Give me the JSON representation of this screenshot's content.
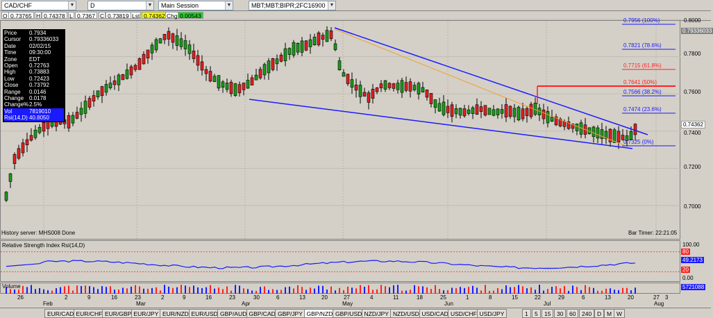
{
  "toolbar": {
    "symbol": "CAD/CHF",
    "interval": "D",
    "session": "Main Session",
    "datasource": "MBT;MBT;BIPR;2FC16900"
  },
  "quote": {
    "open_label": "O",
    "open": "0.73765",
    "high_label": "H",
    "high": "0.74378",
    "low_label": "L",
    "low": "0.7367",
    "close_label": "C",
    "close": "0.73819",
    "last_label": "Lst",
    "last": "0.74362",
    "chg_label": "Chg",
    "chg": "0.00543"
  },
  "info_panel": [
    {
      "k": "Price",
      "v": "0.7934"
    },
    {
      "k": "Cursor",
      "v": "0.79336033"
    },
    {
      "k": "Date",
      "v": "02/02/15"
    },
    {
      "k": "Time",
      "v": "09:30:00"
    },
    {
      "k": "Zone",
      "v": "EDT"
    },
    {
      "k": "Open",
      "v": "0.72763"
    },
    {
      "k": "High",
      "v": "0.73883"
    },
    {
      "k": "Low",
      "v": "0.72423"
    },
    {
      "k": "Close",
      "v": "0.73792"
    },
    {
      "k": "Range",
      "v": "0.0146"
    },
    {
      "k": "Change",
      "v": "0.0178"
    },
    {
      "k": "Change%",
      "v": "2.5%"
    },
    {
      "k": "Vol",
      "v": "7819010"
    },
    {
      "k": "Rsi(14,D)",
      "v": "40.8050"
    }
  ],
  "price_axis": {
    "ticks": [
      "0.8000",
      "0.7800",
      "0.7600",
      "0.7400",
      "0.7200",
      "0.7000"
    ],
    "cursor": "0.79336033",
    "last": "0.74362"
  },
  "fib_labels": [
    "0.7956 (100%)",
    "0.7821 (78.6%)",
    "0.7715 (61.8%)",
    "0.7641 (50%)",
    "0.7566 (38.2%)",
    "0.7474 (23.6%)",
    "0.7325 (0%)"
  ],
  "status": {
    "history": "History server: MHS008 Done",
    "bar_timer": "Bar Timer: 22:21:05"
  },
  "rsi": {
    "title": "Relative Strength Index Rsi(14,D)",
    "ticks": [
      "100.00",
      "80",
      "49.2173",
      "20",
      "0.00"
    ],
    "value": 49.2173
  },
  "volume": {
    "title": "Volume",
    "value": "5721088"
  },
  "date_axis": {
    "days": [
      "26",
      "2",
      "9",
      "16",
      "23",
      "2",
      "9",
      "16",
      "23",
      "30",
      "6",
      "13",
      "20",
      "27",
      "4",
      "11",
      "18",
      "25",
      "1",
      "8",
      "15",
      "22",
      "29",
      "6",
      "13",
      "20",
      "27",
      "3"
    ],
    "months": [
      "Feb",
      "Mar",
      "Apr",
      "May",
      "Jun",
      "Jul",
      "Aug"
    ]
  },
  "tabs": {
    "pairs": [
      "EUR/CAD",
      "EUR/CHF",
      "EUR/GBP",
      "EUR/JPY",
      "EUR/NZD",
      "EUR/USD",
      "GBP/AUD",
      "GBP/CAD",
      "GBP/JPY",
      "GBP/NZD",
      "GBP/USD",
      "NZD/JPY",
      "NZD/USD",
      "USD/CAD",
      "USD/CHF",
      "USD/JPY"
    ],
    "active_pair": "GBP/NZD",
    "intervals": [
      "1",
      "5",
      "15",
      "30",
      "60",
      "240",
      "D",
      "M",
      "W"
    ]
  },
  "colors": {
    "up": "#1a9a1a",
    "down": "#e02020",
    "trendline": "#1a1aff",
    "fib": "#1a1aff",
    "fib_red": "#ff2020",
    "orange_line": "#f0a030"
  }
}
